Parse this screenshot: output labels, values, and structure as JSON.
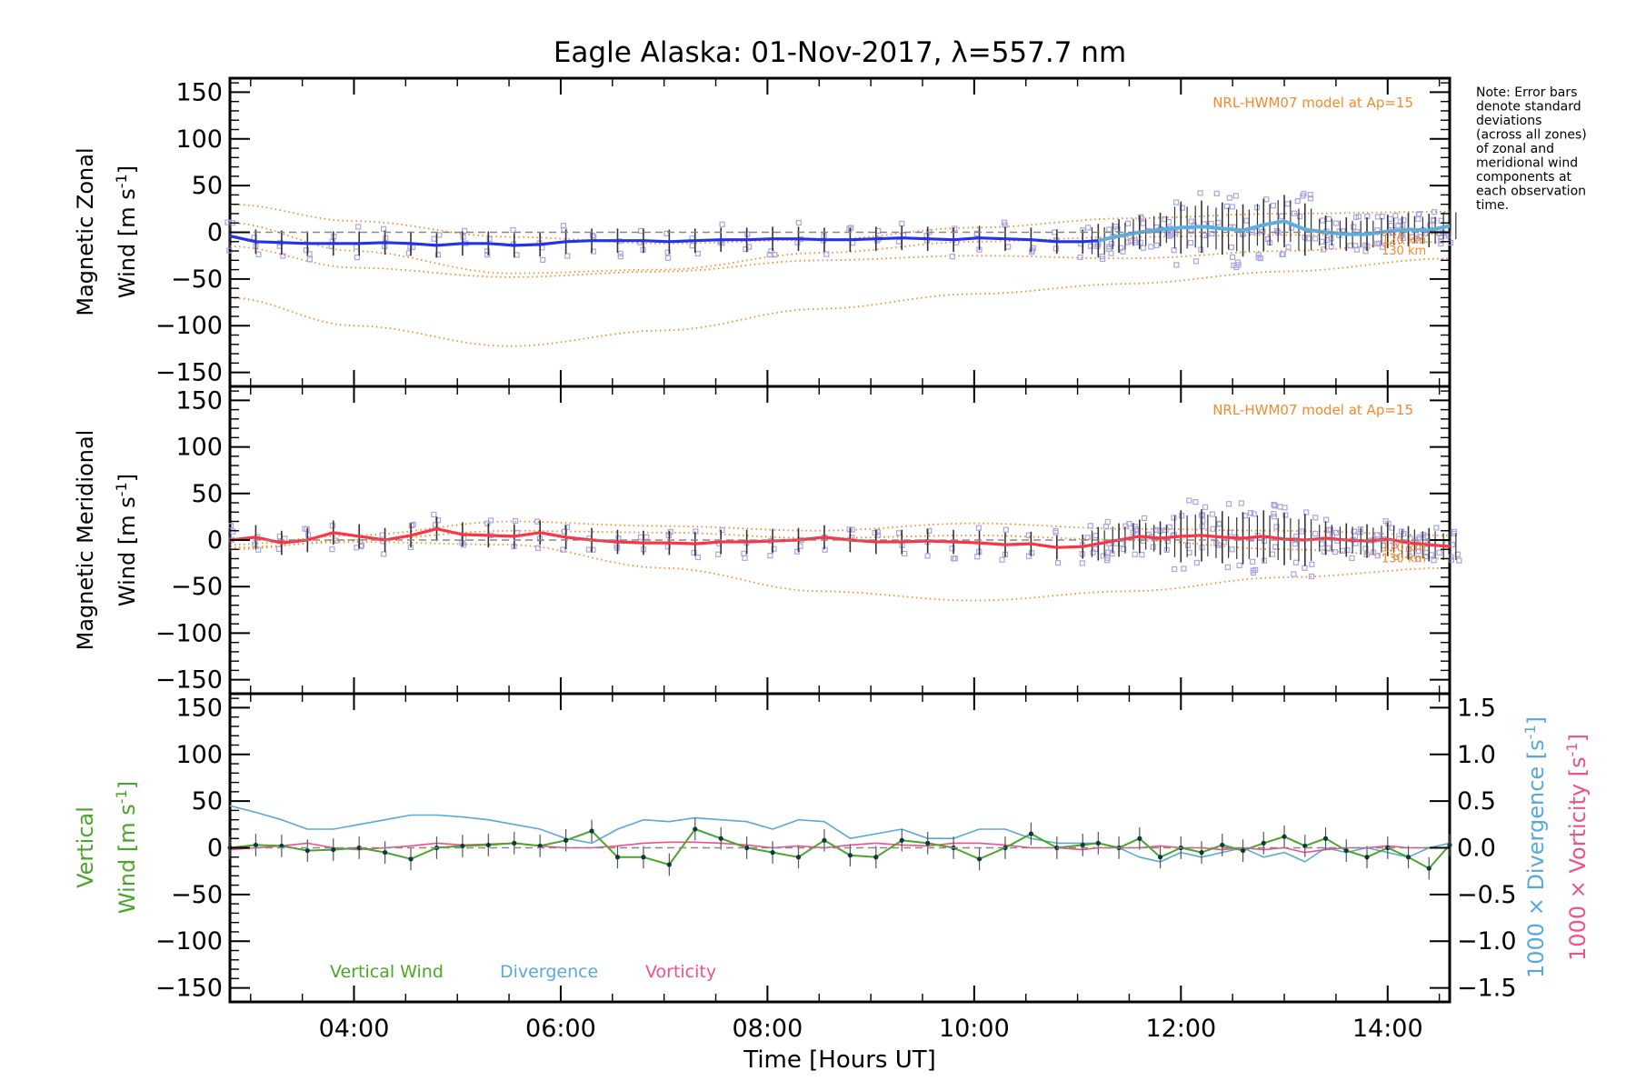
{
  "title": "Eagle Alaska: 01-Nov-2017, λ=557.7 nm",
  "xaxis": {
    "label": "Time [Hours UT]",
    "range": [
      2.8,
      14.6
    ],
    "ticks": [
      {
        "v": 4,
        "label": "04:00"
      },
      {
        "v": 6,
        "label": "06:00"
      },
      {
        "v": 8,
        "label": "08:00"
      },
      {
        "v": 10,
        "label": "10:00"
      },
      {
        "v": 12,
        "label": "12:00"
      },
      {
        "v": 14,
        "label": "14:00"
      }
    ]
  },
  "note": {
    "lines": [
      "Note: Error bars",
      "denote standard",
      "deviations",
      "(across all zones)",
      "of zonal and",
      "meridional wind",
      "components at",
      "each observation",
      "time."
    ]
  },
  "colors": {
    "zonal": "#2233ee",
    "zonal_late": "#5aaee0",
    "meridional": "#ff3344",
    "model": "#f58a2a",
    "scatter": "#a9a4e4",
    "vertical": "#4aa628",
    "divergence": "#59a8dc",
    "vorticity": "#f0508c",
    "zero_line": "#888888"
  },
  "panels": [
    {
      "id": "zonal",
      "ylabel_line1": "Magnetic Zonal",
      "ylabel_line2_main": "Wind [m s",
      "ylabel_sup": "-1",
      "ylabel_close": "]",
      "model_label": "NRL-HWM07 model at Ap=15",
      "model_alt_labels": [
        "120 km",
        "130 km"
      ],
      "ylim": [
        -165,
        165
      ],
      "yticks": [
        -150,
        -100,
        -50,
        0,
        50,
        100,
        150
      ]
    },
    {
      "id": "meridional",
      "ylabel_line1": "Magnetic Meridional",
      "ylabel_line2_main": "Wind [m s",
      "ylabel_sup": "-1",
      "ylabel_close": "]",
      "model_label": "NRL-HWM07 model at Ap=15",
      "model_alt_labels": [
        "120 km",
        "130 km"
      ],
      "ylim": [
        -165,
        165
      ],
      "yticks": [
        -150,
        -100,
        -50,
        0,
        50,
        100,
        150
      ]
    },
    {
      "id": "vertical",
      "ylabel_line1": "Vertical",
      "ylabel_line2_main": "Wind [m s",
      "ylabel_sup": "-1",
      "ylabel_close": "]",
      "ylim": [
        -165,
        165
      ],
      "yticks": [
        -150,
        -100,
        -50,
        0,
        50,
        100,
        150
      ],
      "right_ylim": [
        -1.65,
        1.65
      ],
      "right_yticks": [
        {
          "v": -1.5,
          "label": "−1.5"
        },
        {
          "v": -1.0,
          "label": "−1.0"
        },
        {
          "v": -0.5,
          "label": "−0.5"
        },
        {
          "v": 0.0,
          "label": "0.0"
        },
        {
          "v": 0.5,
          "label": "0.5"
        },
        {
          "v": 1.0,
          "label": "1.0"
        },
        {
          "v": 1.5,
          "label": "1.5"
        }
      ],
      "right_label_div": {
        "main": "1000 × Divergence [s",
        "sup": "-1",
        "close": "]"
      },
      "right_label_vort": {
        "main": "1000 × Vorticity [s",
        "sup": "-1",
        "close": "]"
      },
      "legend": [
        "Vertical Wind",
        "Divergence",
        "Vorticity"
      ]
    }
  ],
  "chart_data": {
    "type": "line",
    "title": "Eagle Alaska: 01-Nov-2017, λ=557.7 nm",
    "xlabel": "Time [Hours UT]",
    "series": {
      "zonal": {
        "x": [
          2.8,
          3.05,
          3.3,
          3.55,
          3.8,
          4.05,
          4.3,
          4.55,
          4.8,
          5.05,
          5.3,
          5.55,
          5.8,
          6.05,
          6.3,
          6.55,
          6.8,
          7.05,
          7.3,
          7.55,
          7.8,
          8.05,
          8.3,
          8.55,
          8.8,
          9.05,
          9.3,
          9.55,
          9.8,
          10.05,
          10.3,
          10.55,
          10.8,
          11.05,
          11.2,
          11.4,
          11.6,
          11.8,
          12.0,
          12.2,
          12.4,
          12.6,
          12.8,
          13.0,
          13.2,
          13.4,
          13.6,
          13.8,
          14.0,
          14.2,
          14.4,
          14.6
        ],
        "y": [
          -4,
          -10,
          -11,
          -12,
          -12,
          -12,
          -11,
          -12,
          -14,
          -12,
          -12,
          -14,
          -13,
          -10,
          -9,
          -9,
          -9,
          -10,
          -9,
          -8,
          -8,
          -7,
          -7,
          -8,
          -8,
          -7,
          -6,
          -7,
          -8,
          -6,
          -7,
          -8,
          -10,
          -10,
          -9,
          -4,
          0,
          3,
          5,
          6,
          4,
          2,
          8,
          12,
          3,
          0,
          -2,
          -2,
          1,
          3,
          2,
          7
        ]
      },
      "zonal_model": [
        {
          "x": [
            2.8,
            4.0,
            5.5,
            7.0,
            8.5,
            10.0,
            11.5,
            13.0,
            14.6
          ],
          "y": [
            -70,
            -100,
            -122,
            -105,
            -82,
            -66,
            -55,
            -42,
            -28
          ]
        },
        {
          "x": [
            2.8,
            4.0,
            5.5,
            7.0,
            8.5,
            10.0,
            11.5,
            13.0,
            14.6
          ],
          "y": [
            30,
            12,
            -5,
            -12,
            -8,
            5,
            15,
            20,
            22
          ]
        },
        {
          "x": [
            2.8,
            4.0,
            5.5,
            7.0,
            8.5,
            10.0,
            11.5,
            13.0,
            14.6
          ],
          "y": [
            10,
            -20,
            -44,
            -40,
            -22,
            -10,
            -5,
            -3,
            -2
          ]
        },
        {
          "x": [
            2.8,
            4.0,
            5.5,
            7.0,
            8.5,
            10.0,
            11.5,
            13.0,
            14.6
          ],
          "y": [
            -15,
            -38,
            -48,
            -42,
            -30,
            -25,
            -28,
            -20,
            -10
          ]
        }
      ],
      "meridional": {
        "x": [
          2.8,
          3.05,
          3.3,
          3.55,
          3.8,
          4.05,
          4.3,
          4.55,
          4.8,
          5.05,
          5.3,
          5.55,
          5.8,
          6.05,
          6.3,
          6.55,
          6.8,
          7.05,
          7.3,
          7.55,
          7.8,
          8.05,
          8.3,
          8.55,
          8.8,
          9.05,
          9.3,
          9.55,
          9.8,
          10.05,
          10.3,
          10.55,
          10.8,
          11.05,
          11.2,
          11.4,
          11.6,
          11.8,
          12.0,
          12.2,
          12.4,
          12.6,
          12.8,
          13.0,
          13.2,
          13.4,
          13.6,
          13.8,
          14.0,
          14.2,
          14.4,
          14.6
        ],
        "y": [
          0,
          3,
          -3,
          0,
          8,
          4,
          0,
          5,
          12,
          6,
          5,
          4,
          8,
          3,
          0,
          -2,
          -3,
          -3,
          -4,
          -2,
          -2,
          -1,
          0,
          3,
          0,
          -2,
          -2,
          -1,
          -2,
          -3,
          -5,
          -4,
          -8,
          -7,
          -4,
          0,
          4,
          2,
          4,
          5,
          3,
          2,
          4,
          1,
          0,
          2,
          0,
          -1,
          1,
          -3,
          -5,
          -7
        ]
      },
      "meridional_model": [
        {
          "x": [
            2.8,
            4.0,
            5.5,
            7.0,
            8.5,
            10.0,
            11.5,
            13.0,
            14.6
          ],
          "y": [
            -5,
            5,
            20,
            15,
            10,
            18,
            12,
            10,
            5
          ]
        },
        {
          "x": [
            2.8,
            4.0,
            5.5,
            7.0,
            8.5,
            10.0,
            11.5,
            13.0,
            14.6
          ],
          "y": [
            -10,
            0,
            10,
            8,
            2,
            5,
            0,
            -10,
            -20
          ]
        },
        {
          "x": [
            2.8,
            4.0,
            5.5,
            7.0,
            8.5,
            10.0,
            11.5,
            13.0,
            14.6
          ],
          "y": [
            -8,
            -2,
            -5,
            -30,
            -55,
            -65,
            -55,
            -40,
            -30
          ]
        }
      ],
      "vertical_wind": {
        "x": [
          2.8,
          3.05,
          3.3,
          3.55,
          3.8,
          4.05,
          4.3,
          4.55,
          4.8,
          5.05,
          5.3,
          5.55,
          5.8,
          6.05,
          6.3,
          6.55,
          6.8,
          7.05,
          7.3,
          7.55,
          7.8,
          8.05,
          8.3,
          8.55,
          8.8,
          9.05,
          9.3,
          9.55,
          9.8,
          10.05,
          10.3,
          10.55,
          10.8,
          11.05,
          11.2,
          11.4,
          11.6,
          11.8,
          12.0,
          12.2,
          12.4,
          12.6,
          12.8,
          13.0,
          13.2,
          13.4,
          13.6,
          13.8,
          14.0,
          14.2,
          14.4,
          14.6
        ],
        "y": [
          0,
          3,
          2,
          -3,
          -2,
          0,
          -5,
          -12,
          0,
          2,
          3,
          5,
          2,
          8,
          18,
          -10,
          -10,
          -18,
          20,
          10,
          0,
          -5,
          -10,
          8,
          -8,
          -10,
          8,
          5,
          0,
          -12,
          0,
          15,
          0,
          3,
          5,
          0,
          10,
          -10,
          0,
          -5,
          3,
          -3,
          5,
          12,
          2,
          10,
          -3,
          -10,
          0,
          -10,
          -22,
          3
        ]
      },
      "divergence": {
        "x": [
          2.8,
          3.05,
          3.3,
          3.55,
          3.8,
          4.05,
          4.3,
          4.55,
          4.8,
          5.05,
          5.3,
          5.55,
          5.8,
          6.05,
          6.3,
          6.55,
          6.8,
          7.05,
          7.3,
          7.55,
          7.8,
          8.05,
          8.3,
          8.55,
          8.8,
          9.05,
          9.3,
          9.55,
          9.8,
          10.05,
          10.3,
          10.55,
          10.8,
          11.05,
          11.2,
          11.4,
          11.6,
          11.8,
          12.0,
          12.2,
          12.4,
          12.6,
          12.8,
          13.0,
          13.2,
          13.4,
          13.6,
          13.8,
          14.0,
          14.2,
          14.4,
          14.6
        ],
        "y": [
          0.45,
          0.38,
          0.3,
          0.2,
          0.2,
          0.25,
          0.3,
          0.35,
          0.35,
          0.33,
          0.3,
          0.25,
          0.2,
          0.1,
          0.05,
          0.2,
          0.3,
          0.28,
          0.32,
          0.3,
          0.28,
          0.2,
          0.3,
          0.28,
          0.1,
          0.15,
          0.2,
          0.1,
          0.1,
          0.2,
          0.2,
          0.1,
          0.05,
          0.05,
          0.05,
          0.0,
          -0.1,
          -0.15,
          -0.05,
          -0.1,
          -0.05,
          0.0,
          -0.1,
          -0.05,
          -0.15,
          0.0,
          -0.05,
          0.0,
          -0.05,
          -0.1,
          0.0,
          0.05
        ]
      },
      "vorticity": {
        "x": [
          2.8,
          3.05,
          3.3,
          3.55,
          3.8,
          4.05,
          4.3,
          4.55,
          4.8,
          5.05,
          5.3,
          5.55,
          5.8,
          6.05,
          6.3,
          6.55,
          6.8,
          7.05,
          7.3,
          7.55,
          7.8,
          8.05,
          8.3,
          8.55,
          8.8,
          9.05,
          9.3,
          9.55,
          9.8,
          10.05,
          10.3,
          10.55,
          10.8,
          11.05,
          11.2,
          11.4,
          11.6,
          11.8,
          12.0,
          12.2,
          12.4,
          12.6,
          12.8,
          13.0,
          13.2,
          13.4,
          13.6,
          13.8,
          14.0,
          14.2,
          14.4,
          14.6
        ],
        "y": [
          -0.02,
          0.0,
          0.02,
          0.05,
          0.0,
          -0.02,
          0.0,
          0.02,
          0.05,
          0.03,
          0.04,
          0.05,
          0.02,
          0.0,
          0.0,
          0.02,
          0.05,
          0.06,
          0.06,
          0.05,
          0.03,
          0.0,
          0.02,
          0.0,
          0.03,
          0.05,
          0.03,
          0.02,
          0.05,
          0.05,
          0.03,
          0.0,
          0.0,
          -0.02,
          0.0,
          0.0,
          0.0,
          0.02,
          0.0,
          0.0,
          -0.02,
          0.0,
          -0.02,
          0.0,
          -0.05,
          -0.02,
          0.0,
          0.0,
          0.02,
          0.0,
          0.0,
          0.0
        ]
      }
    }
  }
}
